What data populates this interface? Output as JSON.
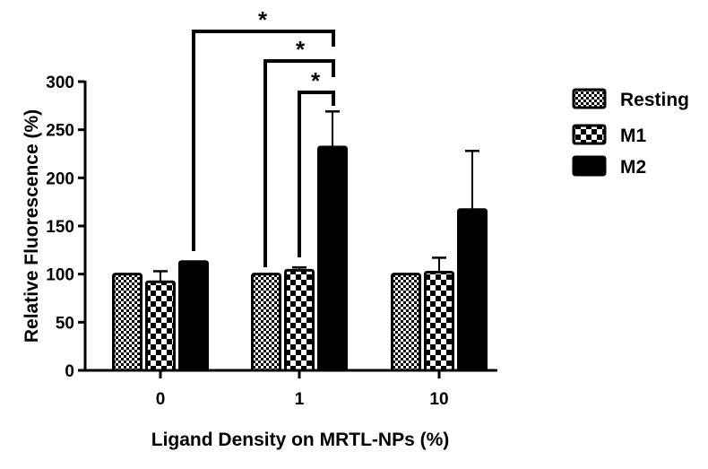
{
  "chart_data": {
    "type": "bar",
    "title": "",
    "xlabel": "Ligand Density on MRTL-NPs (%)",
    "ylabel": "Relative Fluorescence (%)",
    "ylim": [
      0,
      300
    ],
    "yticks": [
      0,
      50,
      100,
      150,
      200,
      250,
      300
    ],
    "categories": [
      "0",
      "1",
      "10"
    ],
    "series": [
      {
        "name": "Resting",
        "pattern": "fine-checker",
        "values": [
          100,
          100,
          100
        ],
        "errors": [
          0,
          0,
          0
        ]
      },
      {
        "name": "M1",
        "pattern": "coarse-checker",
        "values": [
          92,
          104,
          102
        ],
        "errors": [
          11,
          3,
          15
        ]
      },
      {
        "name": "M2",
        "pattern": "solid-black",
        "values": [
          113,
          232,
          167
        ],
        "errors": [
          0,
          37,
          61
        ]
      }
    ],
    "significance": [
      {
        "from": [
          "0",
          "M2"
        ],
        "to": [
          "1",
          "M2"
        ],
        "label": "*"
      },
      {
        "from": [
          "1",
          "Resting"
        ],
        "to": [
          "1",
          "M2"
        ],
        "label": "*"
      },
      {
        "from": [
          "1",
          "M1"
        ],
        "to": [
          "1",
          "M2"
        ],
        "label": "*"
      }
    ],
    "legend": "right",
    "grid": false,
    "colors": {
      "bar": "#000000",
      "background": "#ffffff"
    }
  }
}
